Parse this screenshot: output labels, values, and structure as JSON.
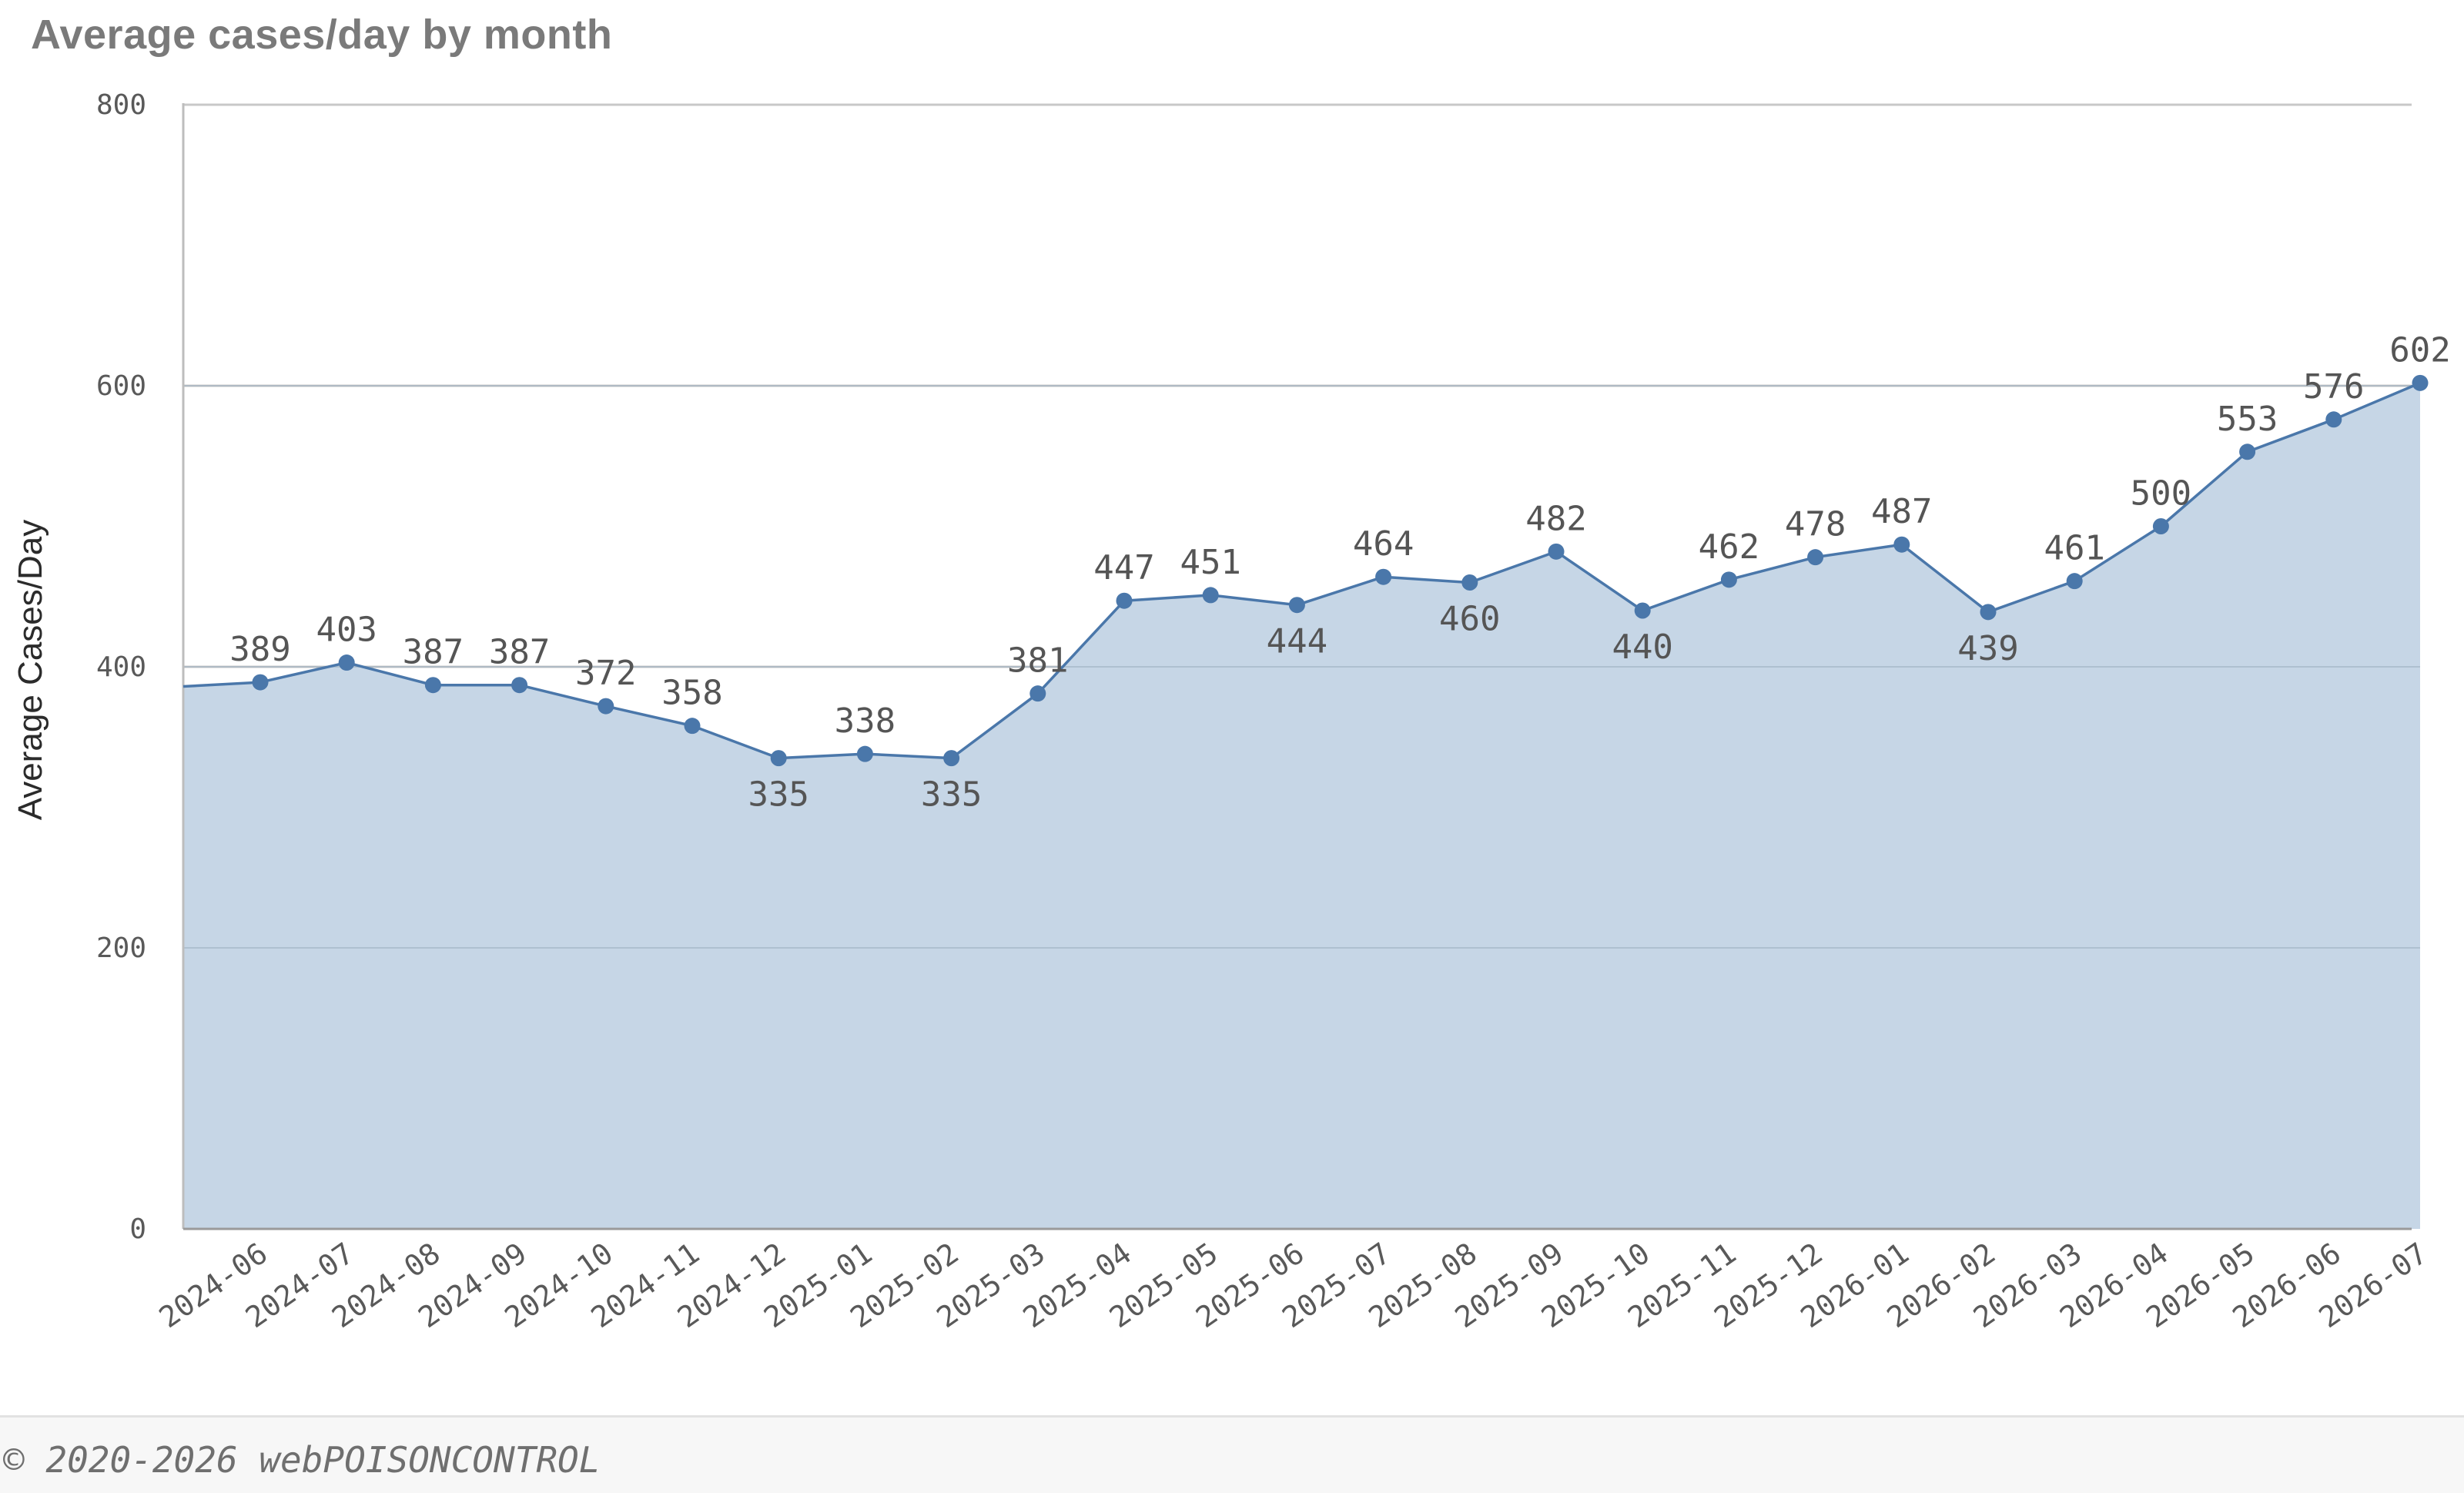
{
  "title": "Average cases/day by month",
  "footer": {
    "copyright": "© 2020-2026 webPOISONCONTROL"
  },
  "colors": {
    "line": "#4a77aa",
    "area": "#c6d6e6",
    "grid": "#c8c8c8",
    "axis": "#9a9a9a"
  },
  "chart_data": {
    "type": "area",
    "title": "Average cases/day by month",
    "xlabel": "",
    "ylabel": "Average Cases/Day",
    "ylim": [
      0,
      800
    ],
    "yticks": [
      0,
      200,
      400,
      600,
      800
    ],
    "grid": true,
    "categories": [
      "2024-06",
      "2024-07",
      "2024-08",
      "2024-09",
      "2024-10",
      "2024-11",
      "2024-12",
      "2025-01",
      "2025-02",
      "2025-03",
      "2025-04",
      "2025-05",
      "2025-06",
      "2025-07",
      "2025-08",
      "2025-09",
      "2025-10",
      "2025-11",
      "2025-12",
      "2026-01",
      "2026-02",
      "2026-03",
      "2026-04",
      "2026-05",
      "2026-06",
      "2026-07"
    ],
    "values": [
      389,
      403,
      387,
      387,
      372,
      358,
      335,
      338,
      335,
      381,
      447,
      451,
      444,
      464,
      460,
      482,
      440,
      462,
      478,
      487,
      439,
      461,
      500,
      553,
      576,
      602
    ],
    "start_value": 386,
    "label_below": [
      6,
      8,
      12,
      14,
      16,
      20
    ]
  }
}
